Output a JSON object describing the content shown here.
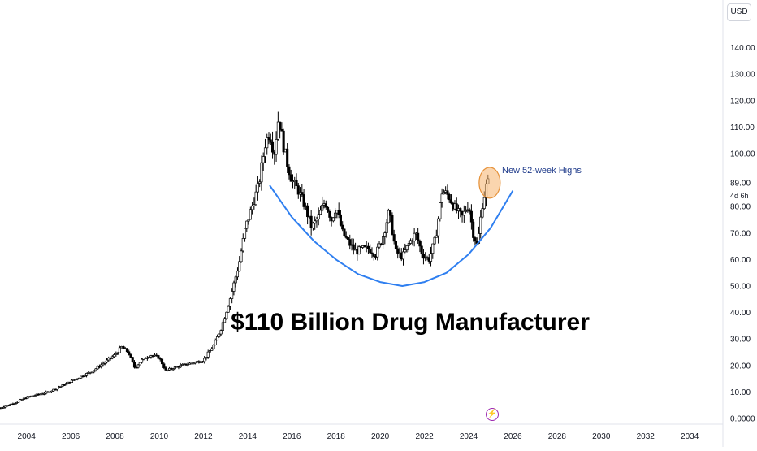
{
  "currency": "USD",
  "timeframe_label": "4d 6h",
  "colors": {
    "candle": "#000000",
    "axis_line": "#e0e3eb",
    "cup_curve": "#2f7ff0",
    "highlight_fill": "#f6b26b",
    "highlight_stroke": "#e69138",
    "annotation_text": "#1e3a8a",
    "event_icon": "#9c27b0"
  },
  "event_icon": "lightning-icon",
  "chart_data": {
    "type": "line",
    "title": "",
    "headline": "$110 Billion Drug Manufacturer",
    "annotation": "New 52-week Highs",
    "xlabel": "",
    "ylabel": "",
    "xlim": [
      2002.8,
      2035.5
    ],
    "ylim": [
      0,
      150
    ],
    "x_ticks": [
      "2004",
      "2006",
      "2008",
      "2010",
      "2012",
      "2014",
      "2016",
      "2018",
      "2020",
      "2022",
      "2024",
      "2026",
      "2028",
      "2030",
      "2032",
      "2034"
    ],
    "y_ticks": [
      "0.0000",
      "10.00",
      "20.00",
      "30.00",
      "40.00",
      "50.00",
      "60.00",
      "70.00",
      "80.00",
      "89.00",
      "100.00",
      "110.00",
      "120.00",
      "130.00",
      "140.00"
    ],
    "price_series": {
      "name": "",
      "x": [
        2002.8,
        2003.5,
        2004.0,
        2004.5,
        2005.0,
        2005.5,
        2006.0,
        2006.5,
        2007.0,
        2007.5,
        2008.0,
        2008.3,
        2008.6,
        2008.9,
        2009.2,
        2009.6,
        2010.0,
        2010.3,
        2010.6,
        2011.0,
        2011.5,
        2012.0,
        2012.5,
        2012.8,
        2013.2,
        2013.6,
        2013.9,
        2014.2,
        2014.5,
        2014.8,
        2015.0,
        2015.2,
        2015.4,
        2015.6,
        2015.8,
        2016.0,
        2016.3,
        2016.6,
        2016.9,
        2017.2,
        2017.5,
        2017.8,
        2018.0,
        2018.3,
        2018.6,
        2018.9,
        2019.2,
        2019.5,
        2019.8,
        2020.1,
        2020.4,
        2020.7,
        2021.0,
        2021.3,
        2021.6,
        2021.9,
        2022.2,
        2022.5,
        2022.8,
        2023.1,
        2023.4,
        2023.7,
        2024.0,
        2024.2,
        2024.4,
        2024.6,
        2024.8,
        2024.95
      ],
      "close": [
        4,
        6,
        8,
        9,
        10,
        12,
        14,
        16,
        18,
        21,
        24,
        27,
        25,
        19,
        22,
        24,
        23,
        18,
        19,
        20,
        21,
        22,
        28,
        34,
        45,
        58,
        72,
        80,
        88,
        104,
        108,
        100,
        114,
        104,
        96,
        90,
        86,
        80,
        72,
        76,
        82,
        75,
        80,
        70,
        66,
        63,
        64,
        64,
        62,
        68,
        78,
        63,
        61,
        66,
        70,
        62,
        60,
        68,
        86,
        84,
        79,
        76,
        81,
        70,
        65,
        80,
        88,
        90
      ]
    },
    "cup_curve": {
      "name": "",
      "x": [
        2015.0,
        2016.0,
        2017.0,
        2018.0,
        2019.0,
        2020.0,
        2021.0,
        2022.0,
        2023.0,
        2024.0,
        2025.0,
        2026.0
      ],
      "y": [
        88,
        76,
        67,
        60,
        54.5,
        51.5,
        50,
        51.5,
        55,
        62,
        72,
        86
      ]
    },
    "highlight": {
      "x": 2024.95,
      "y": 89
    },
    "grid": false,
    "legend": "none"
  }
}
